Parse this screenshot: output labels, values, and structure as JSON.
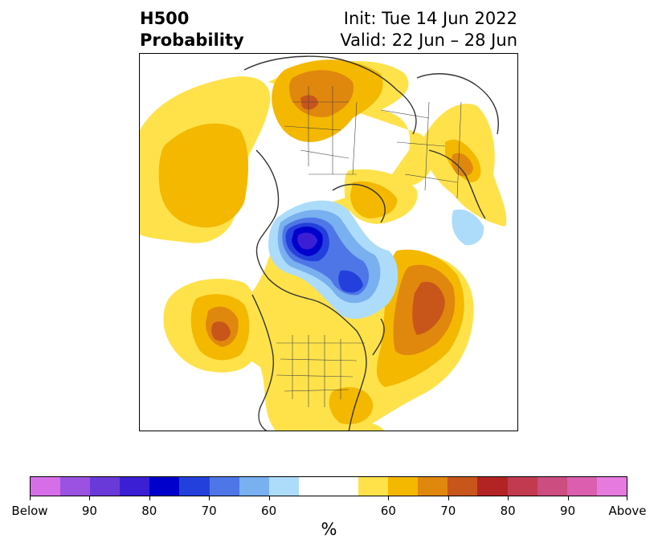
{
  "header": {
    "title_line1": "H500",
    "title_line2": "Probability",
    "init_text": "Init: Tue 14 Jun 2022",
    "valid_text": "Valid: 22 Jun – 28 Jun"
  },
  "map": {
    "projection": "polar stereographic (north pole)",
    "regions": [
      {
        "name": "above-normal",
        "category": "Above",
        "level": "60-75%",
        "color": "#e0870e"
      },
      {
        "name": "below-normal",
        "category": "Below",
        "level": "60-85%",
        "color": "#0000cc"
      }
    ]
  },
  "colorbar": {
    "unit_label": "%",
    "colors": [
      "#d66ee8",
      "#9b52e0",
      "#6a3ad8",
      "#3b1fd4",
      "#0000cc",
      "#2440dc",
      "#4f76e6",
      "#78b0f0",
      "#addcfa",
      "#ffffff",
      "#ffffff",
      "#ffe24a",
      "#f4b800",
      "#e0870e",
      "#c8551a",
      "#b22424",
      "#c23a50",
      "#cc4d7f",
      "#db5fae",
      "#e67ade"
    ],
    "labels": [
      "Below",
      "90",
      "80",
      "70",
      "60",
      "60",
      "70",
      "80",
      "90",
      "Above"
    ]
  }
}
